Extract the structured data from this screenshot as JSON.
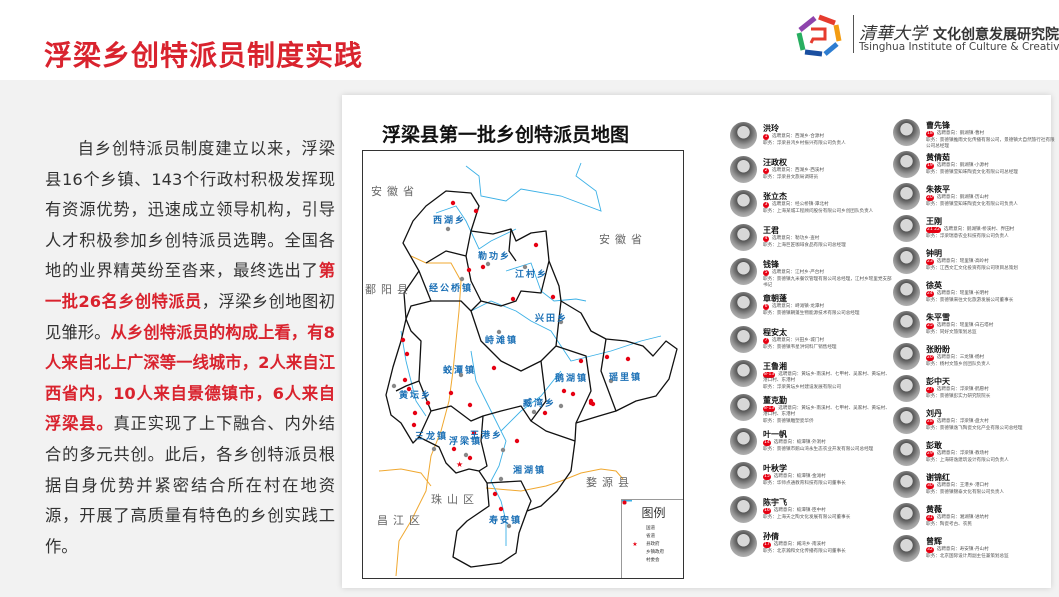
{
  "slide": {
    "title": "浮梁乡创特派员制度实践",
    "logo": {
      "cn_calligraphy": "清華大学",
      "cn": "文化创意发展研究院",
      "en": "Tsinghua Institute of Culture & Creativity"
    },
    "paragraph": [
      {
        "text": "自乡创特派员制度建立以来，浮梁县16个乡镇、143个行政村积极发挥现有资源优势，迅速成立领导机构，引导人才积极参加乡创特派员选聘。全国各地的业界精英纷至沓来，最终选出了",
        "highlight": false
      },
      {
        "text": "第一批26名乡创特派员",
        "highlight": true
      },
      {
        "text": "，浮梁乡创地图初见雏形。",
        "highlight": false
      },
      {
        "text": "从乡创特派员的构成上看，有8人来自北上广深等一线城市，2人来自江西省内，10人来自景德镇市，6人来自浮梁县。",
        "highlight": true
      },
      {
        "text": "真正实现了上下融合、内外结合的多元共创。此后，各乡创特派员根据自身优势并紧密结合所在村在地资源，开展了高质量有特色的乡创实践工作。",
        "highlight": false
      }
    ]
  },
  "map": {
    "title": "浮梁县第一批乡创特派员地图",
    "neighbors": [
      "安徽省",
      "安徽省",
      "鄱阳县",
      "婺源县",
      "珠山区",
      "昌江区"
    ],
    "towns": [
      "西湖乡",
      "勒功乡",
      "江村乡",
      "经公桥镇",
      "兴田乡",
      "峙滩镇",
      "蛟潭镇",
      "鹅湖镇",
      "瑶里镇",
      "黄坛乡",
      "臧湾乡",
      "王港乡",
      "三龙镇",
      "浮梁镇",
      "湘湖镇",
      "寿安镇"
    ],
    "legend": {
      "title": "图例",
      "items": [
        {
          "label": "国道",
          "color": "#f0a830"
        },
        {
          "label": "省道",
          "color": "#3bb0e6"
        },
        {
          "label": "县政府",
          "color": "#e60012"
        },
        {
          "label": "乡镇政府",
          "color": "#888888"
        },
        {
          "label": "村委会",
          "color": "#e60012"
        }
      ]
    }
  },
  "people_left": [
    {
      "name": "洪玲",
      "no": "1",
      "intent": "选聘意向：西湖乡·合源村",
      "job": "职务：浮梁县鸿乡村振兴有限公司负责人"
    },
    {
      "name": "汪政权",
      "no": "2",
      "intent": "选聘意向：西湖乡·西溪村",
      "job": "职务：浮梁县文旅局调研员"
    },
    {
      "name": "张立杰",
      "no": "3",
      "intent": "选聘意向：经公桥镇·潭北村",
      "job": "职务：上海某城工程顾问股份有限公司乡创团队负责人"
    },
    {
      "name": "王君",
      "no": "4",
      "intent": "选聘意向：勒功乡·查村",
      "job": "职务：上海巨匠咖啡食品有限公司总经理"
    },
    {
      "name": "钱锋",
      "no": "5",
      "intent": "选聘意向：江村乡·严台村",
      "job": "职务：景德镇九米餐饮管理有限公司总经理，江村乡瑶里党支部书记"
    },
    {
      "name": "章朝蓬",
      "no": "6",
      "intent": "选聘意向：峙滩镇·龙潭村",
      "job": "职务：景德镇朝蓬生物能源技术有限公司总经理"
    },
    {
      "name": "程安太",
      "no": "7",
      "intent": "选聘意向：兴田乡·城门村",
      "job": "职务：景德镇韦星洪饲料厂销售经理"
    },
    {
      "name": "王鲁湘",
      "no": "8-13",
      "intent": "选聘意向：黄坛乡·南溪村、七甲村、吴家村、黄坛村、港口村、东港村",
      "job": "职务：浮梁黄坛乡村建设发展有限公司"
    },
    {
      "name": "董克勤",
      "no": "8-13",
      "intent": "选聘意向：黄坛乡·南溪村、七甲村、吴家村、黄坛村、港口村、东港村",
      "job": "职务：景德镇雕塑瓷华侨"
    },
    {
      "name": "叶一帆",
      "no": "14",
      "intent": "选聘意向：蛟潭镇·外洞村",
      "job": "职务：景德镇市鹅山湾永生态农业开发有限公司总经理"
    },
    {
      "name": "叶秋学",
      "no": "15",
      "intent": "选聘意向：蛟潭镇·金滩村",
      "job": "职务：华师点通教育科技有限公司董事长"
    },
    {
      "name": "陈宇飞",
      "no": "16",
      "intent": "选聘意向：蛟潭镇·臣中村",
      "job": "职务：上海天之陶文化发展有限公司董事长"
    },
    {
      "name": "孙倩",
      "no": "17",
      "intent": "选聘意向：臧湾乡·南溪村",
      "job": "职务：北京瀚和文化传播有限公司董事长"
    }
  ],
  "people_right": [
    {
      "name": "曹先锋",
      "no": "18",
      "intent": "选聘意向：鹅湖镇·曹村",
      "job": "职务：景德镇推雨文化传播有限公司，景德镇大自然旅行社有限公司总经理"
    },
    {
      "name": "黄倩茹",
      "no": "19",
      "intent": "选聘意向：鹅湖镇·小源村",
      "job": "职务：景德镇莹知味陶瓷文化有限公司总经理"
    },
    {
      "name": "朱筱平",
      "no": "20",
      "intent": "选聘意向：鹅湖镇·历山村",
      "job": "职务：景德镇莹知味陶瓷文化有限公司负责人"
    },
    {
      "name": "王刚",
      "no": "21 22",
      "intent": "选聘意向：鹅湖镇·桥溪村、界田村",
      "job": "职务：浮梁瑞意农业科技有限公司负责人"
    },
    {
      "name": "钟明",
      "no": "23",
      "intent": "选聘意向：瑶里镇·高岭村",
      "job": "职务：江西文汇文化投资有限公司项目总策划"
    },
    {
      "name": "徐英",
      "no": "24",
      "intent": "选聘意向：瑶里镇·长明村",
      "job": "职务：景德镇来往文化旅游发展公司董事长"
    },
    {
      "name": "朱平雪",
      "no": "25",
      "intent": "选聘意向：瑶里镇·白石塔村",
      "job": "职务：同好文旅策划总监"
    },
    {
      "name": "张盼盼",
      "no": "26",
      "intent": "选聘意向：三龙镇·杨村",
      "job": "职务：杨村文旅乡创团队负责人"
    },
    {
      "name": "彭中天",
      "no": "27",
      "intent": "选聘意向：浮梁镇·鹤愿村",
      "job": "职务：景德镇彭实力研究院院长"
    },
    {
      "name": "刘丹",
      "no": "28",
      "intent": "选聘意向：浮梁镇·盘大村",
      "job": "职务：景德镇逸飞陶瓷文化产业有限公司总经理"
    },
    {
      "name": "彭敢",
      "no": "29",
      "intent": "选聘意向：浮梁镇·教场村",
      "job": "职务：上海研逸建筑设计有限公司负责人"
    },
    {
      "name": "谢锦红",
      "no": "30",
      "intent": "选聘意向：王港乡·港口村",
      "job": "职务：景德镇锦泰文化有限公司负责人"
    },
    {
      "name": "黄薇",
      "no": "31",
      "intent": "选聘意向：湘湖镇·进坑村",
      "job": "职务：陶瓷考古、农民"
    },
    {
      "name": "曾辉",
      "no": "32",
      "intent": "选聘意向：寿安镇·丹山村",
      "job": "职务：北京国际设计周副主任兼策划总监"
    }
  ]
}
